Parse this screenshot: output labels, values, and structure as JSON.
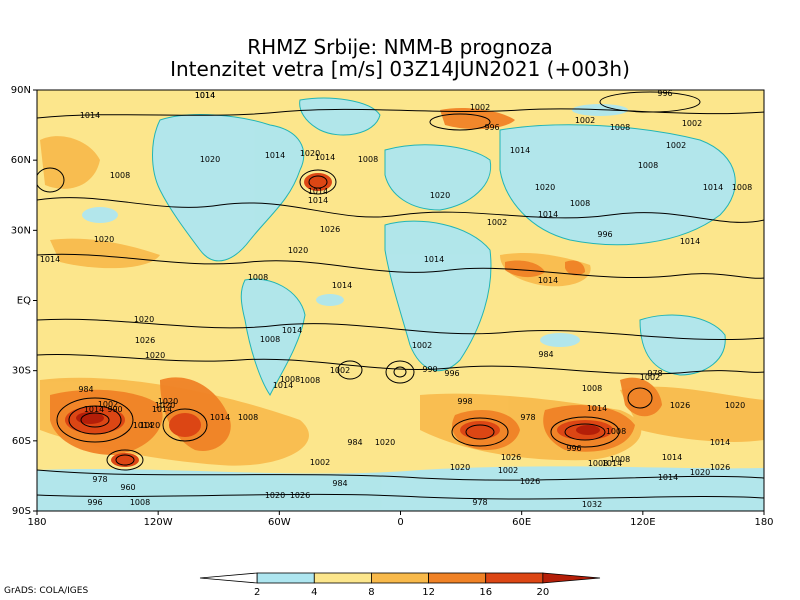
{
  "title_line1": "RHMZ Srbije: NMM-B prognoza",
  "title_line2": "Intenzitet vetra [m/s] 03Z14JUN2021 (+003h)",
  "credit": "GrADS: COLA/IGES",
  "lat_ticks": [
    "90N",
    "60N",
    "30N",
    "EQ",
    "30S",
    "60S",
    "90S"
  ],
  "lon_ticks": [
    "180",
    "120W",
    "60W",
    "0",
    "60E",
    "120E",
    "180"
  ],
  "legend": {
    "values": [
      "2",
      "4",
      "8",
      "12",
      "16",
      "20"
    ],
    "colors": [
      "#ffffff",
      "#aee6f0",
      "#fce68c",
      "#f8b94a",
      "#f08226",
      "#dc4614",
      "#b41e08"
    ]
  },
  "isobar_labels": [
    {
      "text": "1014"
    },
    {
      "text": "1014"
    },
    {
      "text": "1002"
    },
    {
      "text": "996"
    },
    {
      "text": "996"
    },
    {
      "text": "1002"
    },
    {
      "text": "1008"
    },
    {
      "text": "1002"
    },
    {
      "text": "1020"
    },
    {
      "text": "1014"
    },
    {
      "text": "1020"
    },
    {
      "text": "1014"
    },
    {
      "text": "1008"
    },
    {
      "text": "1014"
    },
    {
      "text": "1008"
    },
    {
      "text": "1002"
    },
    {
      "text": "1008"
    },
    {
      "text": "1014"
    },
    {
      "text": "1014"
    },
    {
      "text": "1020"
    },
    {
      "text": "1020"
    },
    {
      "text": "1014"
    },
    {
      "text": "1008"
    },
    {
      "text": "1014"
    },
    {
      "text": "1026"
    },
    {
      "text": "1002"
    },
    {
      "text": "996"
    },
    {
      "text": "1008"
    },
    {
      "text": "1020"
    },
    {
      "text": "1020"
    },
    {
      "text": "1014"
    },
    {
      "text": "1008"
    },
    {
      "text": "1014"
    },
    {
      "text": "1014"
    },
    {
      "text": "1014"
    },
    {
      "text": "1014"
    },
    {
      "text": "1020"
    },
    {
      "text": "1026"
    },
    {
      "text": "1020"
    },
    {
      "text": "1014"
    },
    {
      "text": "1008"
    },
    {
      "text": "1002"
    },
    {
      "text": "996"
    },
    {
      "text": "984"
    },
    {
      "text": "1002"
    },
    {
      "text": "1008"
    },
    {
      "text": "1014"
    },
    {
      "text": "984"
    },
    {
      "text": "978"
    },
    {
      "text": "1008"
    },
    {
      "text": "1026"
    },
    {
      "text": "1020"
    },
    {
      "text": "1014"
    },
    {
      "text": "1014"
    },
    {
      "text": "998"
    },
    {
      "text": "984"
    },
    {
      "text": "978"
    },
    {
      "text": "1014"
    },
    {
      "text": "1008"
    },
    {
      "text": "1020"
    },
    {
      "text": "1026"
    },
    {
      "text": "1002"
    },
    {
      "text": "996"
    },
    {
      "text": "1008"
    },
    {
      "text": "1014"
    },
    {
      "text": "1032"
    },
    {
      "text": "1026"
    },
    {
      "text": "1014"
    },
    {
      "text": "1008"
    },
    {
      "text": "1020"
    },
    {
      "text": "1014"
    },
    {
      "text": "1014"
    },
    {
      "text": "1020"
    },
    {
      "text": "1026"
    },
    {
      "text": "1008"
    },
    {
      "text": "1002"
    },
    {
      "text": "1014"
    },
    {
      "text": "1020"
    },
    {
      "text": "1014"
    },
    {
      "text": "1020"
    },
    {
      "text": "990"
    },
    {
      "text": "978"
    },
    {
      "text": "960"
    },
    {
      "text": "1008"
    },
    {
      "text": "996"
    },
    {
      "text": "1008"
    },
    {
      "text": "1002"
    },
    {
      "text": "978"
    },
    {
      "text": "984"
    },
    {
      "text": "990"
    },
    {
      "text": "1020"
    },
    {
      "text": "1002"
    },
    {
      "text": "1026"
    },
    {
      "text": "1020"
    },
    {
      "text": "1014"
    }
  ]
}
